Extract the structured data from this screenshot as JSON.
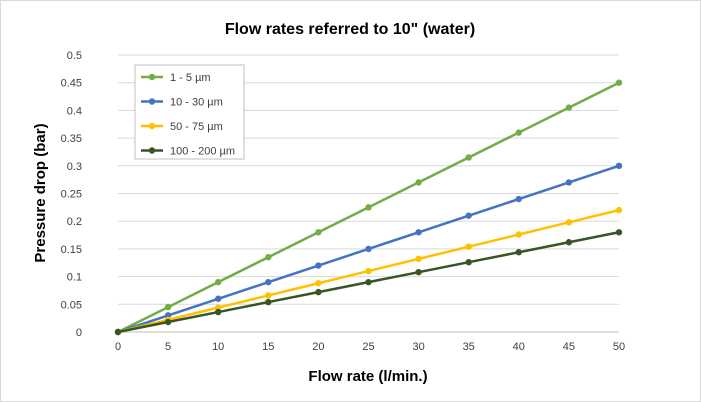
{
  "chart_data": {
    "type": "line",
    "title": "Flow rates referred to 10\" (water)",
    "xlabel": "Flow rate (l/min.)",
    "ylabel": "Pressure drop (bar)",
    "x": [
      0,
      5,
      10,
      15,
      20,
      25,
      30,
      35,
      40,
      45,
      50
    ],
    "xticks": [
      "0",
      "5",
      "10",
      "15",
      "20",
      "25",
      "30",
      "35",
      "40",
      "45",
      "50"
    ],
    "yticks": [
      "0",
      "0.05",
      "0.1",
      "0.15",
      "0.2",
      "0.25",
      "0.3",
      "0.35",
      "0.4",
      "0.45",
      "0.5"
    ],
    "xlim": [
      0,
      50
    ],
    "ylim": [
      0,
      0.5
    ],
    "grid": true,
    "legend_position": "top-left",
    "series": [
      {
        "name": "1 - 5 µm",
        "color": "#70ad47",
        "values": [
          0,
          0.045,
          0.09,
          0.135,
          0.18,
          0.225,
          0.27,
          0.315,
          0.36,
          0.405,
          0.45
        ]
      },
      {
        "name": "10 - 30 µm",
        "color": "#4472c4",
        "values": [
          0,
          0.03,
          0.06,
          0.09,
          0.12,
          0.15,
          0.18,
          0.21,
          0.24,
          0.27,
          0.3
        ]
      },
      {
        "name": "50 - 75 µm",
        "color": "#ffc000",
        "values": [
          0,
          0.022,
          0.044,
          0.066,
          0.088,
          0.11,
          0.132,
          0.154,
          0.176,
          0.198,
          0.22
        ]
      },
      {
        "name": "100 - 200 µm",
        "color": "#375623",
        "values": [
          0,
          0.018,
          0.036,
          0.054,
          0.072,
          0.09,
          0.108,
          0.126,
          0.144,
          0.162,
          0.18
        ]
      }
    ]
  }
}
